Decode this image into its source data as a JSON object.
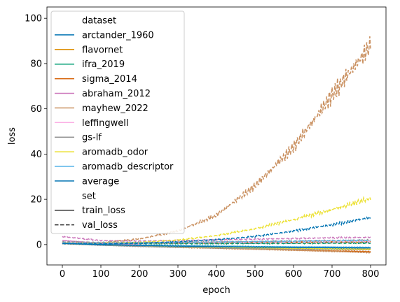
{
  "chart_data": {
    "type": "line",
    "xlabel": "epoch",
    "ylabel": "loss",
    "xlim": [
      -40,
      840
    ],
    "ylim": [
      -9,
      105
    ],
    "xticks": [
      0,
      100,
      200,
      300,
      400,
      500,
      600,
      700,
      800
    ],
    "yticks": [
      0,
      20,
      40,
      60,
      80,
      100
    ],
    "grid": false,
    "legend": {
      "placement": "top-left",
      "dataset_title": "dataset",
      "set_title": "set",
      "styles": [
        {
          "name": "train_loss",
          "dash": "solid"
        },
        {
          "name": "val_loss",
          "dash": "dashed"
        }
      ]
    },
    "series": [
      {
        "name": "arctander_1960",
        "color": "#0173b2",
        "train": [
          [
            0,
            0.6
          ],
          [
            100,
            0.1
          ],
          [
            200,
            -0.3
          ],
          [
            300,
            -0.6
          ],
          [
            400,
            -0.9
          ],
          [
            500,
            -1.1
          ],
          [
            600,
            -1.3
          ],
          [
            700,
            -1.5
          ],
          [
            800,
            -1.7
          ]
        ],
        "val": [
          [
            0,
            0.8
          ],
          [
            100,
            0.6
          ],
          [
            200,
            0.5
          ],
          [
            300,
            0.5
          ],
          [
            400,
            0.6
          ],
          [
            500,
            0.7
          ],
          [
            600,
            0.8
          ],
          [
            700,
            0.9
          ],
          [
            800,
            1.0
          ]
        ]
      },
      {
        "name": "flavornet",
        "color": "#de8f05",
        "train": [
          [
            0,
            0.5
          ],
          [
            100,
            0.0
          ],
          [
            200,
            -0.4
          ],
          [
            300,
            -0.8
          ],
          [
            400,
            -1.1
          ],
          [
            500,
            -1.4
          ],
          [
            600,
            -1.7
          ],
          [
            700,
            -2.0
          ],
          [
            800,
            -2.2
          ]
        ],
        "val": [
          [
            0,
            0.9
          ],
          [
            100,
            0.7
          ],
          [
            200,
            0.6
          ],
          [
            300,
            0.6
          ],
          [
            400,
            0.7
          ],
          [
            500,
            0.8
          ],
          [
            600,
            0.9
          ],
          [
            700,
            1.0
          ],
          [
            800,
            1.1
          ]
        ]
      },
      {
        "name": "ifra_2019",
        "color": "#029e73",
        "train": [
          [
            0,
            0.5
          ],
          [
            100,
            0.1
          ],
          [
            200,
            -0.2
          ],
          [
            300,
            -0.5
          ],
          [
            400,
            -0.7
          ],
          [
            500,
            -0.9
          ],
          [
            600,
            -1.1
          ],
          [
            700,
            -1.2
          ],
          [
            800,
            -1.4
          ]
        ],
        "val": [
          [
            0,
            0.7
          ],
          [
            100,
            0.5
          ],
          [
            200,
            0.4
          ],
          [
            300,
            0.4
          ],
          [
            400,
            0.4
          ],
          [
            500,
            0.5
          ],
          [
            600,
            0.5
          ],
          [
            700,
            0.6
          ],
          [
            800,
            0.6
          ]
        ]
      },
      {
        "name": "sigma_2014",
        "color": "#d55e00",
        "train": [
          [
            0,
            0.4
          ],
          [
            100,
            -0.2
          ],
          [
            200,
            -0.7
          ],
          [
            300,
            -1.2
          ],
          [
            400,
            -1.6
          ],
          [
            500,
            -2.0
          ],
          [
            600,
            -2.4
          ],
          [
            700,
            -2.8
          ],
          [
            800,
            -3.1
          ]
        ],
        "val": [
          [
            0,
            0.8
          ],
          [
            100,
            0.7
          ],
          [
            200,
            0.7
          ],
          [
            300,
            0.8
          ],
          [
            400,
            0.9
          ],
          [
            500,
            1.0
          ],
          [
            600,
            1.1
          ],
          [
            700,
            1.2
          ],
          [
            800,
            1.3
          ]
        ]
      },
      {
        "name": "abraham_2012",
        "color": "#cc78bc",
        "train": [
          [
            0,
            1.8
          ],
          [
            100,
            0.6
          ],
          [
            200,
            -0.2
          ],
          [
            300,
            -0.7
          ],
          [
            400,
            -1.0
          ],
          [
            500,
            -1.3
          ],
          [
            600,
            -1.5
          ],
          [
            700,
            -1.7
          ],
          [
            800,
            -1.9
          ]
        ],
        "val": [
          [
            0,
            3.5
          ],
          [
            100,
            1.8
          ],
          [
            200,
            1.6
          ],
          [
            300,
            1.8
          ],
          [
            400,
            2.1
          ],
          [
            500,
            2.4
          ],
          [
            600,
            2.7
          ],
          [
            700,
            3.0
          ],
          [
            800,
            3.2
          ]
        ]
      },
      {
        "name": "mayhew_2022",
        "color": "#ca9161",
        "train": [
          [
            0,
            0.6
          ],
          [
            100,
            0.0
          ],
          [
            200,
            -0.5
          ],
          [
            300,
            -1.0
          ],
          [
            400,
            -1.5
          ],
          [
            500,
            -2.0
          ],
          [
            600,
            -2.5
          ],
          [
            700,
            -3.0
          ],
          [
            800,
            -3.5
          ]
        ],
        "val": [
          [
            0,
            0.5
          ],
          [
            100,
            0.8
          ],
          [
            200,
            2.5
          ],
          [
            300,
            6.0
          ],
          [
            400,
            13.0
          ],
          [
            500,
            26.0
          ],
          [
            600,
            43.0
          ],
          [
            700,
            66.0
          ],
          [
            800,
            88.0
          ]
        ]
      },
      {
        "name": "leffingwell",
        "color": "#fbafe4",
        "train": [
          [
            0,
            0.5
          ],
          [
            100,
            0.0
          ],
          [
            200,
            -0.4
          ],
          [
            300,
            -0.7
          ],
          [
            400,
            -1.0
          ],
          [
            500,
            -1.2
          ],
          [
            600,
            -1.4
          ],
          [
            700,
            -1.6
          ],
          [
            800,
            -1.8
          ]
        ],
        "val": [
          [
            0,
            0.9
          ],
          [
            100,
            0.8
          ],
          [
            200,
            0.7
          ],
          [
            300,
            0.8
          ],
          [
            400,
            0.9
          ],
          [
            500,
            1.0
          ],
          [
            600,
            1.1
          ],
          [
            700,
            1.2
          ],
          [
            800,
            1.3
          ]
        ]
      },
      {
        "name": "gs-lf",
        "color": "#949494",
        "train": [
          [
            0,
            0.6
          ],
          [
            100,
            -0.3
          ],
          [
            200,
            -0.8
          ],
          [
            300,
            -1.2
          ],
          [
            400,
            -1.5
          ],
          [
            500,
            -1.7
          ],
          [
            600,
            -1.9
          ],
          [
            700,
            -2.1
          ],
          [
            800,
            -2.3
          ]
        ],
        "val": [
          [
            0,
            1.2
          ],
          [
            100,
            1.0
          ],
          [
            200,
            1.0
          ],
          [
            300,
            1.1
          ],
          [
            400,
            1.2
          ],
          [
            500,
            1.4
          ],
          [
            600,
            1.6
          ],
          [
            700,
            1.8
          ],
          [
            800,
            2.0
          ]
        ]
      },
      {
        "name": "aromadb_odor",
        "color": "#ece133",
        "train": [
          [
            0,
            0.5
          ],
          [
            100,
            0.0
          ],
          [
            200,
            -0.4
          ],
          [
            300,
            -0.8
          ],
          [
            400,
            -1.1
          ],
          [
            500,
            -1.4
          ],
          [
            600,
            -1.6
          ],
          [
            700,
            -1.8
          ],
          [
            800,
            -2.0
          ]
        ],
        "val": [
          [
            0,
            0.6
          ],
          [
            100,
            0.6
          ],
          [
            200,
            1.0
          ],
          [
            300,
            2.0
          ],
          [
            400,
            4.0
          ],
          [
            500,
            7.0
          ],
          [
            600,
            11.0
          ],
          [
            700,
            15.5
          ],
          [
            800,
            20.5
          ]
        ]
      },
      {
        "name": "aromadb_descriptor",
        "color": "#56b4e9",
        "train": [
          [
            0,
            0.5
          ],
          [
            100,
            0.0
          ],
          [
            200,
            -0.3
          ],
          [
            300,
            -0.5
          ],
          [
            400,
            -0.7
          ],
          [
            500,
            -0.9
          ],
          [
            600,
            -1.0
          ],
          [
            700,
            -1.1
          ],
          [
            800,
            -1.2
          ]
        ],
        "val": [
          [
            0,
            0.7
          ],
          [
            100,
            0.6
          ],
          [
            200,
            0.7
          ],
          [
            300,
            0.9
          ],
          [
            400,
            1.1
          ],
          [
            500,
            1.3
          ],
          [
            600,
            1.5
          ],
          [
            700,
            1.7
          ],
          [
            800,
            1.9
          ]
        ]
      },
      {
        "name": "average",
        "color": "#0173b2",
        "train": [
          [
            0,
            0.5
          ],
          [
            100,
            0.0
          ],
          [
            200,
            -0.4
          ],
          [
            300,
            -0.7
          ],
          [
            400,
            -0.9
          ],
          [
            500,
            -1.1
          ],
          [
            600,
            -1.3
          ],
          [
            700,
            -1.4
          ],
          [
            800,
            -1.5
          ]
        ],
        "val": [
          [
            0,
            0.4
          ],
          [
            100,
            0.3
          ],
          [
            200,
            0.6
          ],
          [
            300,
            1.2
          ],
          [
            400,
            2.2
          ],
          [
            500,
            3.6
          ],
          [
            600,
            6.0
          ],
          [
            700,
            8.8
          ],
          [
            800,
            12.0
          ]
        ]
      }
    ]
  }
}
